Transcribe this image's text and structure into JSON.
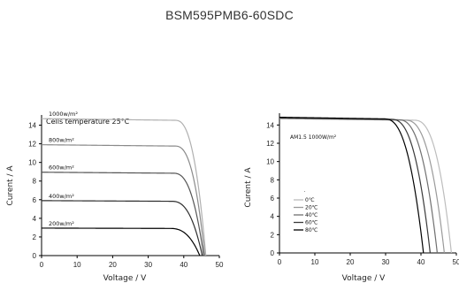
{
  "page": {
    "title": "BSM595PMB6-60SDC"
  },
  "chart_data": [
    {
      "type": "line",
      "title": "",
      "annotation": "Cells temperature 25°C",
      "xlabel": "Voltage / V",
      "ylabel": "Curent / A",
      "xlim": [
        0,
        50
      ],
      "ylim": [
        0,
        15
      ],
      "xticks": [
        0,
        10,
        20,
        30,
        40,
        50
      ],
      "yticks": [
        0,
        2,
        4,
        6,
        8,
        10,
        12,
        14
      ],
      "series": [
        {
          "name": "1000w/m²",
          "isc": 14.7,
          "voc": 46.2,
          "knee": 37.5,
          "color": "#b0b0b0"
        },
        {
          "name": "800w/m²",
          "isc": 11.9,
          "voc": 45.9,
          "knee": 37.5,
          "color": "#8a8a8a"
        },
        {
          "name": "600w/m²",
          "isc": 8.95,
          "voc": 45.6,
          "knee": 37.0,
          "color": "#555555"
        },
        {
          "name": "400w/m²",
          "isc": 5.9,
          "voc": 45.2,
          "knee": 36.5,
          "color": "#2e2e2e"
        },
        {
          "name": "200w/m²",
          "isc": 2.95,
          "voc": 44.5,
          "knee": 36.0,
          "color": "#000000"
        }
      ]
    },
    {
      "type": "line",
      "title": "",
      "annotation": "AM1.5 1000W/m²",
      "xlabel": "Voltage / V",
      "ylabel": "Curent / A",
      "xlim": [
        0,
        50
      ],
      "ylim": [
        0,
        15
      ],
      "xticks": [
        0,
        10,
        20,
        30,
        40,
        50
      ],
      "yticks": [
        0,
        2,
        4,
        6,
        8,
        10,
        12,
        14
      ],
      "legend": "lower-left",
      "series": [
        {
          "name": "0℃",
          "isc": 14.7,
          "voc": 48.6,
          "knee": 38.0,
          "color": "#bdbdbd"
        },
        {
          "name": "20℃",
          "isc": 14.7,
          "voc": 46.6,
          "knee": 35.5,
          "color": "#9a9a9a"
        },
        {
          "name": "40℃",
          "isc": 14.75,
          "voc": 44.6,
          "knee": 33.5,
          "color": "#707070"
        },
        {
          "name": "60℃",
          "isc": 14.8,
          "voc": 42.6,
          "knee": 31.5,
          "color": "#3a3a3a"
        },
        {
          "name": "80℃",
          "isc": 14.85,
          "voc": 40.7,
          "knee": 29.5,
          "color": "#000000"
        }
      ]
    }
  ]
}
